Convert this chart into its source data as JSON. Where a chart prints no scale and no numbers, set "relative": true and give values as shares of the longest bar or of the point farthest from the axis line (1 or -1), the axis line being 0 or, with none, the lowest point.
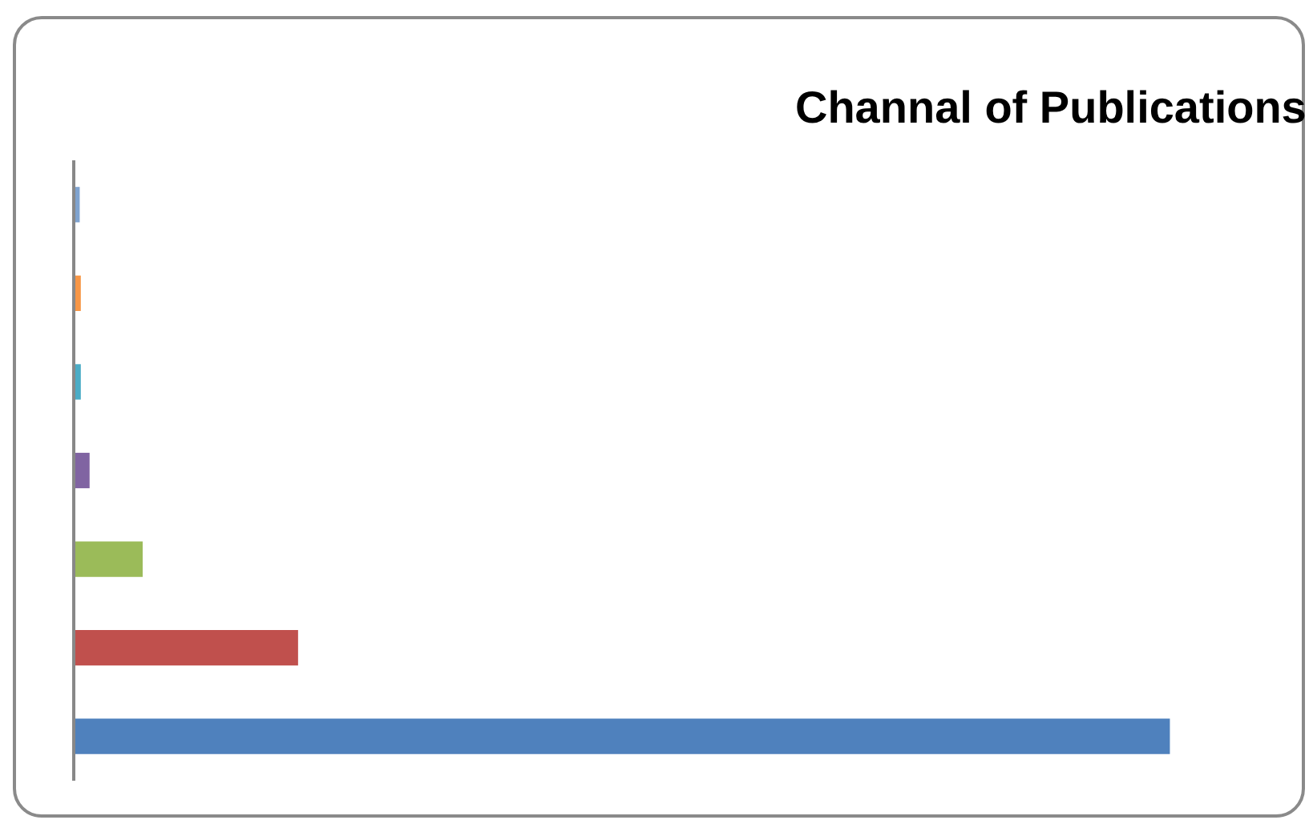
{
  "chart_data": {
    "type": "bar",
    "title": "Channal of Publications",
    "orientation": "horizontal",
    "relative": true,
    "categories": [
      null,
      null,
      null,
      null,
      null,
      null,
      null
    ],
    "values": [
      0.004,
      0.005,
      0.005,
      0.013,
      0.0615,
      0.2035,
      1
    ],
    "colors": [
      "#7fa3cf",
      "#f79646",
      "#4bacc6",
      "#8064a2",
      "#9bbb59",
      "#c0504d",
      "#4f81bd"
    ],
    "legend": false
  }
}
